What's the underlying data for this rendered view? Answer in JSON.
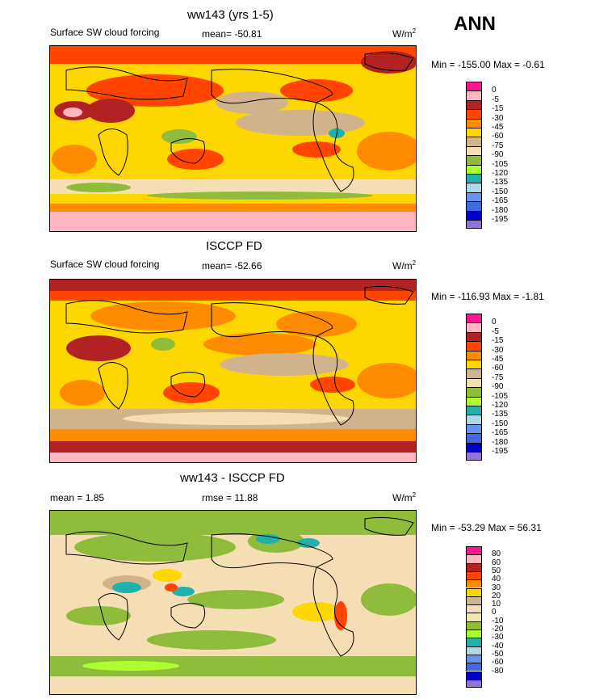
{
  "season": "ANN",
  "panels": [
    {
      "title": "ww143 (yrs 1-5)",
      "left_label": "Surface SW cloud forcing",
      "center_label": "mean= -50.81",
      "units_base": "W/m",
      "units_exp": "2",
      "minmax": "Min = -155.00 Max =  -0.61",
      "legend_labels": [
        "0",
        "-5",
        "-15",
        "-30",
        "-45",
        "-60",
        "-75",
        "-90",
        "-105",
        "-120",
        "-135",
        "-150",
        "-165",
        "-180",
        "-195"
      ]
    },
    {
      "title": "ISCCP FD",
      "left_label": "Surface SW cloud forcing",
      "center_label": "mean= -52.66",
      "units_base": "W/m",
      "units_exp": "2",
      "minmax": "Min = -116.93 Max =  -1.81",
      "legend_labels": [
        "0",
        "-5",
        "-15",
        "-30",
        "-45",
        "-60",
        "-75",
        "-90",
        "-105",
        "-120",
        "-135",
        "-150",
        "-165",
        "-180",
        "-195"
      ]
    },
    {
      "title": "ww143 - ISCCP FD",
      "left_label": "mean =   1.85",
      "center_label": "rmse =  11.88",
      "units_base": "W/m",
      "units_exp": "2",
      "minmax": "Min = -53.29 Max =  56.31",
      "legend_labels": [
        "80",
        "60",
        "50",
        "40",
        "30",
        "20",
        "10",
        "0",
        "-10",
        "-20",
        "-30",
        "-40",
        "-50",
        "-60",
        "-80"
      ]
    }
  ],
  "chart_data": [
    {
      "type": "heatmap",
      "title": "ww143 (yrs 1-5)",
      "variable": "Surface SW cloud forcing",
      "mean": -50.81,
      "min": -155.0,
      "max": -0.61,
      "contour_levels": [
        0,
        -5,
        -15,
        -30,
        -45,
        -60,
        -75,
        -90,
        -105,
        -120,
        -135,
        -150,
        -165,
        -180,
        -195
      ]
    },
    {
      "type": "heatmap",
      "title": "ISCCP FD",
      "variable": "Surface SW cloud forcing",
      "mean": -52.66,
      "min": -116.93,
      "max": -1.81,
      "contour_levels": [
        0,
        -5,
        -15,
        -30,
        -45,
        -60,
        -75,
        -90,
        -105,
        -120,
        -135,
        -150,
        -165,
        -180,
        -195
      ]
    },
    {
      "type": "heatmap",
      "title": "ww143 - ISCCP FD",
      "mean": 1.85,
      "rmse": 11.88,
      "min": -53.29,
      "max": 56.31,
      "contour_levels": [
        80,
        60,
        50,
        40,
        30,
        20,
        10,
        0,
        -10,
        -20,
        -30,
        -40,
        -50,
        -60,
        -80
      ]
    }
  ],
  "colors": {
    "abs_scale": [
      "#ff1493",
      "#ffb6c1",
      "#b22222",
      "#ff4500",
      "#ff8c00",
      "#ffd700",
      "#d2b48c",
      "#f5deb3",
      "#8fbc3a",
      "#adff2f",
      "#20b2aa",
      "#add8e6",
      "#6495ed",
      "#4169e1",
      "#0000cd",
      "#9370db"
    ],
    "diff_scale": [
      "#ff1493",
      "#ffb6c1",
      "#b22222",
      "#ff4500",
      "#ff8c00",
      "#ffd700",
      "#d2b48c",
      "#f5deb3",
      "#eee8aa",
      "#8fbc3a",
      "#adff2f",
      "#20b2aa",
      "#add8e6",
      "#6495ed",
      "#4169e1",
      "#0000cd",
      "#9370db"
    ]
  }
}
